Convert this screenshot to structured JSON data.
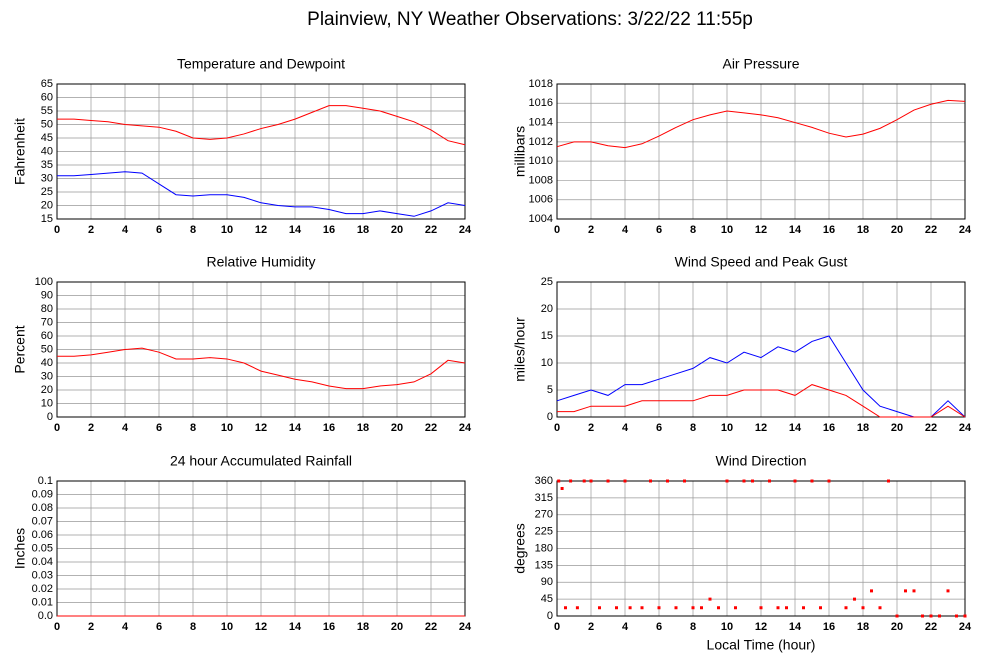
{
  "title": "Plainview, NY Weather Observations: 3/22/22 11:55p",
  "chart_data": [
    {
      "type": "line",
      "title": "Temperature and Dewpoint",
      "ylabel": "Fahrenheit",
      "x": [
        0,
        1,
        2,
        3,
        4,
        5,
        6,
        7,
        8,
        9,
        10,
        11,
        12,
        13,
        14,
        15,
        16,
        17,
        18,
        19,
        20,
        21,
        22,
        23,
        24
      ],
      "series": [
        {
          "color": "#ff0000",
          "values": [
            52,
            52,
            51.5,
            51,
            50,
            49.5,
            49,
            47.5,
            45,
            44.5,
            45,
            46.5,
            48.5,
            50,
            52,
            54.5,
            57,
            57,
            56,
            55,
            53,
            51,
            48,
            44,
            42.5
          ]
        },
        {
          "color": "#0000ff",
          "values": [
            31,
            31,
            31.5,
            32,
            32.5,
            32,
            28,
            24,
            23.5,
            24,
            24,
            23,
            21,
            20,
            19.5,
            19.5,
            18.5,
            17,
            17,
            18,
            17,
            16,
            18,
            21,
            20
          ]
        }
      ],
      "xlim": [
        0,
        24
      ],
      "xticks": [
        0,
        2,
        4,
        6,
        8,
        10,
        12,
        14,
        16,
        18,
        20,
        22,
        24
      ],
      "ylim": [
        15,
        65
      ],
      "yticks": [
        15,
        20,
        25,
        30,
        35,
        40,
        45,
        50,
        55,
        60,
        65
      ],
      "grid": true
    },
    {
      "type": "line",
      "title": "Air Pressure",
      "ylabel": "millibars",
      "x": [
        0,
        1,
        2,
        3,
        4,
        5,
        6,
        7,
        8,
        9,
        10,
        11,
        12,
        13,
        14,
        15,
        16,
        17,
        18,
        19,
        20,
        21,
        22,
        23,
        24
      ],
      "series": [
        {
          "color": "#ff0000",
          "values": [
            1011.5,
            1012,
            1012,
            1011.6,
            1011.4,
            1011.8,
            1012.6,
            1013.5,
            1014.3,
            1014.8,
            1015.2,
            1015,
            1014.8,
            1014.5,
            1014,
            1013.5,
            1012.9,
            1012.5,
            1012.8,
            1013.4,
            1014.3,
            1015.3,
            1015.9,
            1016.3,
            1016.2
          ]
        }
      ],
      "xlim": [
        0,
        24
      ],
      "xticks": [
        0,
        2,
        4,
        6,
        8,
        10,
        12,
        14,
        16,
        18,
        20,
        22,
        24
      ],
      "ylim": [
        1004,
        1018
      ],
      "yticks": [
        1004,
        1006,
        1008,
        1010,
        1012,
        1014,
        1016,
        1018
      ],
      "grid": true
    },
    {
      "type": "line",
      "title": "Relative Humidity",
      "ylabel": "Percent",
      "x": [
        0,
        1,
        2,
        3,
        4,
        5,
        6,
        7,
        8,
        9,
        10,
        11,
        12,
        13,
        14,
        15,
        16,
        17,
        18,
        19,
        20,
        21,
        22,
        23,
        24
      ],
      "series": [
        {
          "color": "#ff0000",
          "values": [
            45,
            45,
            46,
            48,
            50,
            51,
            48,
            43,
            43,
            44,
            43,
            40,
            34,
            31,
            28,
            26,
            23,
            21,
            21,
            23,
            24,
            26,
            32,
            42,
            40
          ]
        }
      ],
      "xlim": [
        0,
        24
      ],
      "xticks": [
        0,
        2,
        4,
        6,
        8,
        10,
        12,
        14,
        16,
        18,
        20,
        22,
        24
      ],
      "ylim": [
        0,
        100
      ],
      "yticks": [
        0,
        10,
        20,
        30,
        40,
        50,
        60,
        70,
        80,
        90,
        100
      ],
      "grid": true
    },
    {
      "type": "line",
      "title": "Wind Speed and Peak Gust",
      "ylabel": "miles/hour",
      "x": [
        0,
        1,
        2,
        3,
        4,
        5,
        6,
        7,
        8,
        9,
        10,
        11,
        12,
        13,
        14,
        15,
        16,
        17,
        18,
        19,
        20,
        21,
        22,
        23,
        24
      ],
      "series": [
        {
          "color": "#0000ff",
          "values": [
            3,
            4,
            5,
            4,
            6,
            6,
            7,
            8,
            9,
            11,
            10,
            12,
            11,
            13,
            12,
            14,
            15,
            10,
            5,
            2,
            1,
            0,
            0,
            3,
            0
          ]
        },
        {
          "color": "#ff0000",
          "values": [
            1,
            1,
            2,
            2,
            2,
            3,
            3,
            3,
            3,
            4,
            4,
            5,
            5,
            5,
            4,
            6,
            5,
            4,
            2,
            0,
            0,
            0,
            0,
            2,
            0
          ]
        }
      ],
      "xlim": [
        0,
        24
      ],
      "xticks": [
        0,
        2,
        4,
        6,
        8,
        10,
        12,
        14,
        16,
        18,
        20,
        22,
        24
      ],
      "ylim": [
        0,
        25
      ],
      "yticks": [
        0,
        5,
        10,
        15,
        20,
        25
      ],
      "grid": true
    },
    {
      "type": "line",
      "title": "24 hour Accumulated Rainfall",
      "ylabel": "Inches",
      "x": [
        0,
        24
      ],
      "series": [
        {
          "color": "#ff0000",
          "values": [
            0,
            0
          ]
        }
      ],
      "xlim": [
        0,
        24
      ],
      "xticks": [
        0,
        2,
        4,
        6,
        8,
        10,
        12,
        14,
        16,
        18,
        20,
        22,
        24
      ],
      "ylim": [
        0,
        0.1
      ],
      "yticks": [
        {
          "value": 0,
          "label": "0.0"
        },
        0.01,
        0.02,
        0.03,
        0.04,
        0.05,
        0.06,
        0.07,
        0.08,
        0.09,
        0.1
      ],
      "grid": true
    },
    {
      "type": "scatter",
      "title": "Wind Direction",
      "ylabel": "degrees",
      "xlabel": "Local Time (hour)",
      "x": [
        0.1,
        0.3,
        0.5,
        0.8,
        1.2,
        1.6,
        2,
        2.5,
        3,
        3.5,
        4,
        4.3,
        5,
        5.5,
        6,
        6.5,
        7,
        7.5,
        8,
        8.5,
        9,
        9.5,
        10,
        10.5,
        11,
        11.5,
        12,
        12.5,
        13,
        13.5,
        14,
        14.5,
        15,
        15.5,
        16,
        17,
        17.5,
        18,
        18.5,
        19,
        19.5,
        20,
        20.5,
        21,
        21.5,
        22,
        22.5,
        23,
        23.5,
        24
      ],
      "series": [
        {
          "color": "#ff0000",
          "values": [
            360,
            340,
            22,
            360,
            22,
            360,
            360,
            22,
            360,
            22,
            360,
            22,
            22,
            360,
            22,
            360,
            22,
            360,
            22,
            22,
            45,
            22,
            360,
            22,
            360,
            360,
            22,
            360,
            22,
            22,
            360,
            22,
            360,
            22,
            360,
            22,
            45,
            22,
            67,
            22,
            360,
            0,
            67,
            67,
            0,
            0,
            0,
            67,
            0,
            0
          ]
        }
      ],
      "xlim": [
        0,
        24
      ],
      "xticks": [
        0,
        2,
        4,
        6,
        8,
        10,
        12,
        14,
        16,
        18,
        20,
        22,
        24
      ],
      "ylim": [
        0,
        360
      ],
      "yticks": [
        0,
        45,
        90,
        135,
        180,
        225,
        270,
        315,
        360
      ],
      "grid": true
    }
  ]
}
